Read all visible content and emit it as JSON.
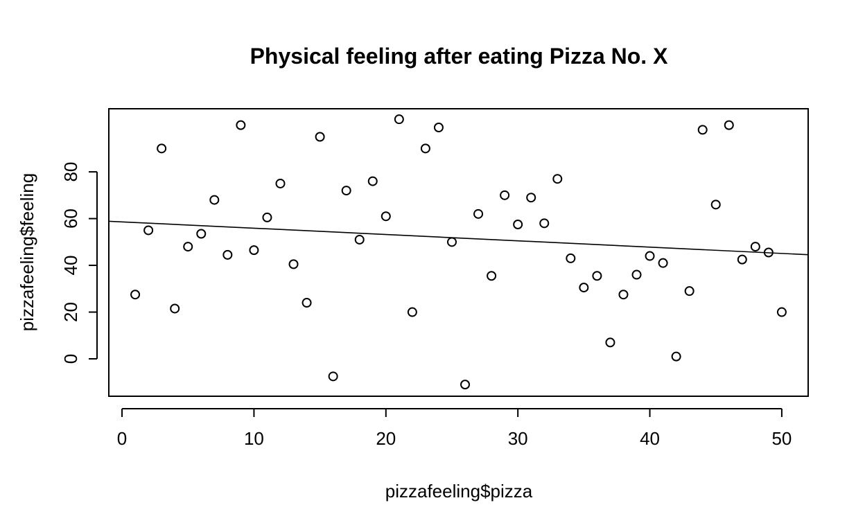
{
  "chart_data": {
    "type": "scatter",
    "title": "Physical feeling after eating Pizza No. X",
    "xlabel": "pizzafeeling$pizza",
    "ylabel": "pizzafeeling$feeling",
    "xlim": [
      -1,
      52
    ],
    "ylim": [
      -16,
      107
    ],
    "x_ticks": [
      0,
      10,
      20,
      30,
      40,
      50
    ],
    "y_ticks": [
      0,
      20,
      40,
      60,
      80
    ],
    "grid": false,
    "points": [
      {
        "x": 1,
        "y": 27.5
      },
      {
        "x": 2,
        "y": 55
      },
      {
        "x": 3,
        "y": 90
      },
      {
        "x": 4,
        "y": 21.5
      },
      {
        "x": 5,
        "y": 48
      },
      {
        "x": 6,
        "y": 53.5
      },
      {
        "x": 7,
        "y": 68
      },
      {
        "x": 8,
        "y": 44.5
      },
      {
        "x": 9,
        "y": 100
      },
      {
        "x": 10,
        "y": 46.5
      },
      {
        "x": 11,
        "y": 60.5
      },
      {
        "x": 12,
        "y": 75
      },
      {
        "x": 13,
        "y": 40.5
      },
      {
        "x": 14,
        "y": 24
      },
      {
        "x": 15,
        "y": 95
      },
      {
        "x": 16,
        "y": -7.5
      },
      {
        "x": 17,
        "y": 72
      },
      {
        "x": 18,
        "y": 51
      },
      {
        "x": 19,
        "y": 76
      },
      {
        "x": 20,
        "y": 61
      },
      {
        "x": 21,
        "y": 102.5
      },
      {
        "x": 22,
        "y": 20
      },
      {
        "x": 23,
        "y": 90
      },
      {
        "x": 24,
        "y": 99
      },
      {
        "x": 25,
        "y": 50
      },
      {
        "x": 26,
        "y": -11
      },
      {
        "x": 27,
        "y": 62
      },
      {
        "x": 28,
        "y": 35.5
      },
      {
        "x": 29,
        "y": 70
      },
      {
        "x": 30,
        "y": 57.5
      },
      {
        "x": 31,
        "y": 69
      },
      {
        "x": 32,
        "y": 58
      },
      {
        "x": 33,
        "y": 77
      },
      {
        "x": 34,
        "y": 43
      },
      {
        "x": 35,
        "y": 30.5
      },
      {
        "x": 36,
        "y": 35.5
      },
      {
        "x": 37,
        "y": 7
      },
      {
        "x": 38,
        "y": 27.5
      },
      {
        "x": 39,
        "y": 36
      },
      {
        "x": 40,
        "y": 44
      },
      {
        "x": 41,
        "y": 41
      },
      {
        "x": 42,
        "y": 1
      },
      {
        "x": 43,
        "y": 29
      },
      {
        "x": 44,
        "y": 98
      },
      {
        "x": 45,
        "y": 66
      },
      {
        "x": 46,
        "y": 100
      },
      {
        "x": 47,
        "y": 42.5
      },
      {
        "x": 48,
        "y": 48
      },
      {
        "x": 49,
        "y": 45.5
      },
      {
        "x": 50,
        "y": 20
      }
    ],
    "fit_line": {
      "intercept": 58.6,
      "slope": -0.27
    }
  }
}
